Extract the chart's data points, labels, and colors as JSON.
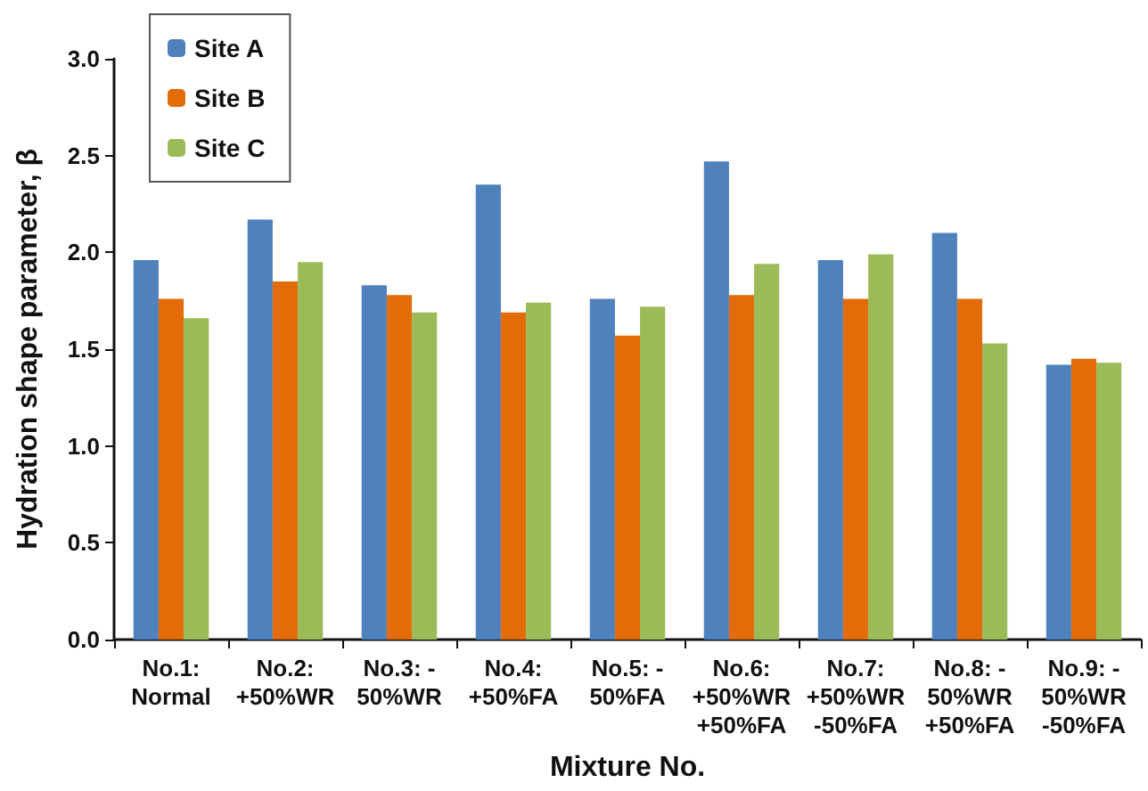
{
  "chart_data": {
    "type": "bar",
    "xlabel": "Mixture No.",
    "ylabel": "Hydration shape parameter, β",
    "categories": [
      "No.1:\nNormal",
      "No.2:\n+50%WR",
      "No.3: -\n50%WR",
      "No.4:\n+50%FA",
      "No.5: -\n50%FA",
      "No.6:\n+50%WR\n+50%FA",
      "No.7:\n+50%WR\n-50%FA",
      "No.8: -\n50%WR\n+50%FA",
      "No.9: -\n50%WR\n-50%FA"
    ],
    "series": [
      {
        "name": "Site A",
        "color": "#4f81bd",
        "values": [
          1.96,
          2.17,
          1.83,
          2.35,
          1.76,
          2.47,
          1.96,
          2.1,
          1.42
        ]
      },
      {
        "name": "Site B",
        "color": "#e36c09",
        "values": [
          1.76,
          1.85,
          1.78,
          1.69,
          1.57,
          1.78,
          1.76,
          1.76,
          1.45
        ]
      },
      {
        "name": "Site C",
        "color": "#9bbb59",
        "values": [
          1.66,
          1.95,
          1.69,
          1.74,
          1.72,
          1.94,
          1.99,
          1.53,
          1.43
        ]
      }
    ],
    "ylim": [
      0,
      3
    ],
    "yticks": [
      {
        "value": 0,
        "label": "0.0"
      },
      0.5,
      {
        "value": 1,
        "label": "1.0"
      },
      1.5,
      {
        "value": 2,
        "label": "2.0"
      },
      2.5,
      {
        "value": 3,
        "label": "3.0"
      }
    ],
    "grid": false,
    "legend": "top left"
  }
}
